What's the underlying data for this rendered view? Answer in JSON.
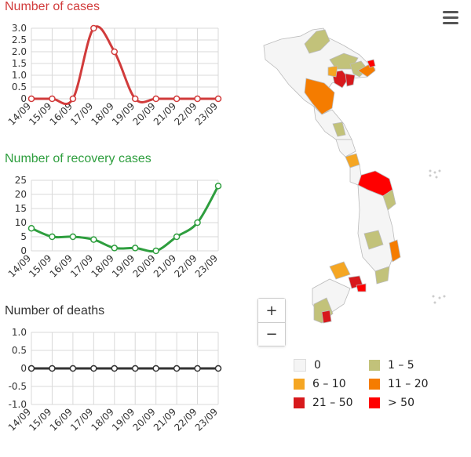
{
  "chart_data": [
    {
      "type": "line",
      "title": "Number of cases",
      "title_color": "#d13b3b",
      "line_color": "#d13b3b",
      "categories": [
        "14/09",
        "15/09",
        "16/09",
        "17/09",
        "18/09",
        "19/09",
        "20/09",
        "21/09",
        "22/09",
        "23/09"
      ],
      "values": [
        0,
        0,
        0,
        3,
        2,
        0,
        0,
        0,
        0,
        0
      ],
      "ylim": [
        0,
        3
      ],
      "yticks": [
        "0",
        "0.5",
        "1.0",
        "1.5",
        "2.0",
        "2.5",
        "3.0"
      ],
      "smooth": true,
      "grid": true
    },
    {
      "type": "line",
      "title": "Number of recovery cases",
      "title_color": "#2e9e3e",
      "line_color": "#2e9e3e",
      "categories": [
        "14/09",
        "15/09",
        "16/09",
        "17/09",
        "18/09",
        "19/09",
        "20/09",
        "21/09",
        "22/09",
        "23/09"
      ],
      "values": [
        8,
        5,
        5,
        4,
        1,
        1,
        0,
        5,
        10,
        23
      ],
      "ylim": [
        0,
        25
      ],
      "yticks": [
        "0",
        "5",
        "10",
        "15",
        "20",
        "25"
      ],
      "smooth": true,
      "grid": true
    },
    {
      "type": "line",
      "title": "Number of deaths",
      "title_color": "#333333",
      "line_color": "#333333",
      "categories": [
        "14/09",
        "15/09",
        "16/09",
        "17/09",
        "18/09",
        "19/09",
        "20/09",
        "21/09",
        "22/09",
        "23/09"
      ],
      "values": [
        0,
        0,
        0,
        0,
        0,
        0,
        0,
        0,
        0,
        0
      ],
      "ylim": [
        -1,
        1
      ],
      "yticks": [
        "-1.0",
        "-0.5",
        "0",
        "0.5",
        "1.0"
      ],
      "smooth": false,
      "grid": true
    }
  ],
  "zoom": {
    "in_label": "+",
    "out_label": "−"
  },
  "legend": [
    {
      "label": "0",
      "color": "#f5f5f5"
    },
    {
      "label": "1 – 5",
      "color": "#c2c27a"
    },
    {
      "label": "6 – 10",
      "color": "#f5a623"
    },
    {
      "label": "11 – 20",
      "color": "#f57c00"
    },
    {
      "label": "21 – 50",
      "color": "#d7191c"
    },
    {
      "label": "> 50",
      "color": "#ff0000"
    }
  ]
}
